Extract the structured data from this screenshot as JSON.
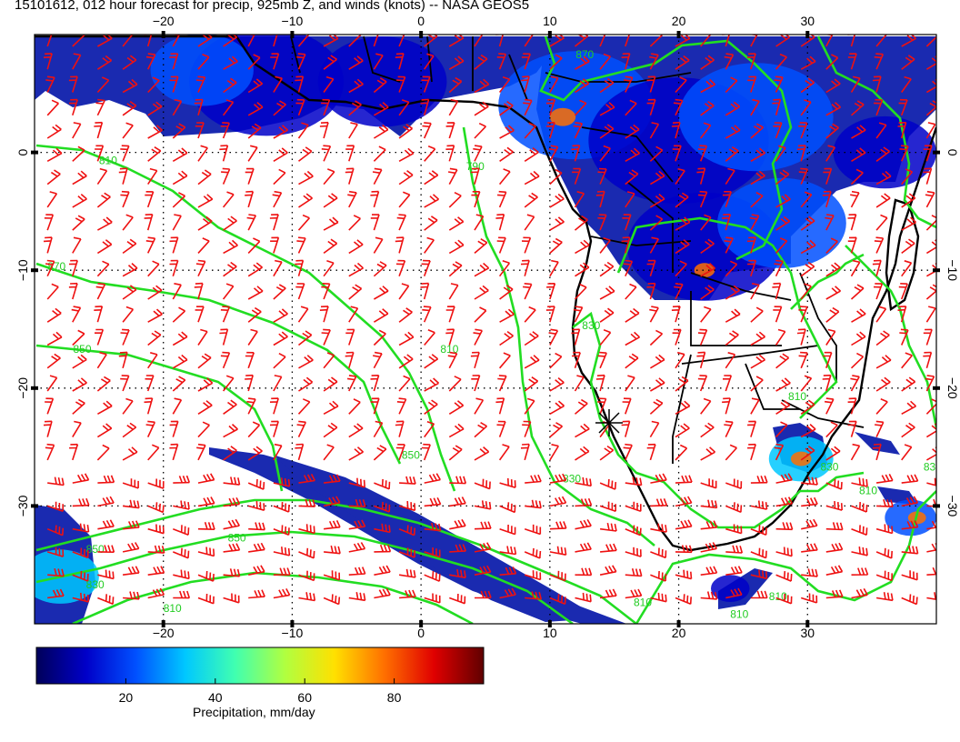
{
  "title": "15101612, 012 hour forecast for precip, 925mb Z, and winds (knots) -- NASA GEOS5",
  "map": {
    "lon_range": [
      -30,
      40
    ],
    "lat_range": [
      -40,
      10
    ],
    "lon_ticks": [
      {
        "value": -20,
        "label": "−20"
      },
      {
        "value": -10,
        "label": "−10"
      },
      {
        "value": 0,
        "label": "0"
      },
      {
        "value": 10,
        "label": "10"
      },
      {
        "value": 20,
        "label": "20"
      },
      {
        "value": 30,
        "label": "30"
      }
    ],
    "lat_ticks": [
      {
        "value": 0,
        "label": "0"
      },
      {
        "value": -10,
        "label": "−10"
      },
      {
        "value": -20,
        "label": "−20"
      },
      {
        "value": -30,
        "label": "−30"
      }
    ],
    "gridlines": "dotted",
    "land_color": "#ffffff",
    "coast_color": "#000000",
    "contour_color": "#22dd22",
    "wind_barb_color": "#ee1111",
    "contour_labels": [
      {
        "text": "870",
        "lon": 12,
        "lat": 8
      },
      {
        "text": "810",
        "lon": -25,
        "lat": -1
      },
      {
        "text": "790",
        "lon": 3.5,
        "lat": -1.5
      },
      {
        "text": "870",
        "lon": -29,
        "lat": -10
      },
      {
        "text": "850",
        "lon": -27,
        "lat": -17
      },
      {
        "text": "810",
        "lon": 1.5,
        "lat": -17
      },
      {
        "text": "830",
        "lon": 12.5,
        "lat": -15
      },
      {
        "text": "850",
        "lon": -1.5,
        "lat": -26
      },
      {
        "text": "830",
        "lon": 11,
        "lat": -28
      },
      {
        "text": "850",
        "lon": -15,
        "lat": -33
      },
      {
        "text": "850",
        "lon": -26,
        "lat": -34
      },
      {
        "text": "830",
        "lon": -26,
        "lat": -37
      },
      {
        "text": "810",
        "lon": -20,
        "lat": -39
      },
      {
        "text": "810",
        "lon": 16.5,
        "lat": -38.5
      },
      {
        "text": "810",
        "lon": 28.5,
        "lat": -21
      },
      {
        "text": "830",
        "lon": 31,
        "lat": -27
      },
      {
        "text": "810",
        "lon": 34,
        "lat": -29
      },
      {
        "text": "830",
        "lon": 39,
        "lat": -27
      },
      {
        "text": "810",
        "lon": 24,
        "lat": -39.5
      },
      {
        "text": "810",
        "lon": 27,
        "lat": -38
      }
    ],
    "precip_cells": [
      {
        "lon": -12,
        "lat": 6,
        "r": 6,
        "value": 20
      },
      {
        "lon": -17,
        "lat": 7,
        "r": 4,
        "value": 30
      },
      {
        "lon": -3,
        "lat": 6,
        "r": 5,
        "value": 15
      },
      {
        "lon": 12,
        "lat": 4,
        "r": 6,
        "value": 25
      },
      {
        "lon": 11,
        "lat": 3,
        "r": 1,
        "value": 80
      },
      {
        "lon": 20,
        "lat": 1,
        "r": 7,
        "value": 20
      },
      {
        "lon": 26,
        "lat": 3,
        "r": 6,
        "value": 25
      },
      {
        "lon": 36,
        "lat": 0,
        "r": 4,
        "value": 20
      },
      {
        "lon": 22,
        "lat": -8,
        "r": 6,
        "value": 20
      },
      {
        "lon": 28,
        "lat": -6,
        "r": 5,
        "value": 25
      },
      {
        "lon": 22,
        "lat": -10,
        "r": 0.8,
        "value": 80
      },
      {
        "lon": 29.5,
        "lat": -26,
        "r": 2.5,
        "value": 40
      },
      {
        "lon": 29.5,
        "lat": -26,
        "r": 0.8,
        "value": 80
      },
      {
        "lon": 38,
        "lat": -31,
        "r": 2,
        "value": 30
      },
      {
        "lon": 38.5,
        "lat": -31,
        "r": 0.7,
        "value": 80
      },
      {
        "lon": -28,
        "lat": -36,
        "r": 3,
        "value": 40
      },
      {
        "lon": 24,
        "lat": -37,
        "r": 1.5,
        "value": 20
      }
    ]
  },
  "colorbar": {
    "ticks": [
      20,
      40,
      60,
      80
    ],
    "tick_labels": [
      "20",
      "40",
      "60",
      "80"
    ],
    "range": [
      0,
      100
    ],
    "label": "Precipitation, mm/day",
    "colormap": [
      "#00005a",
      "#0000c8",
      "#0050ff",
      "#00c8ff",
      "#40ffb0",
      "#b0ff40",
      "#ffe000",
      "#ff7000",
      "#e00000",
      "#600000"
    ]
  }
}
